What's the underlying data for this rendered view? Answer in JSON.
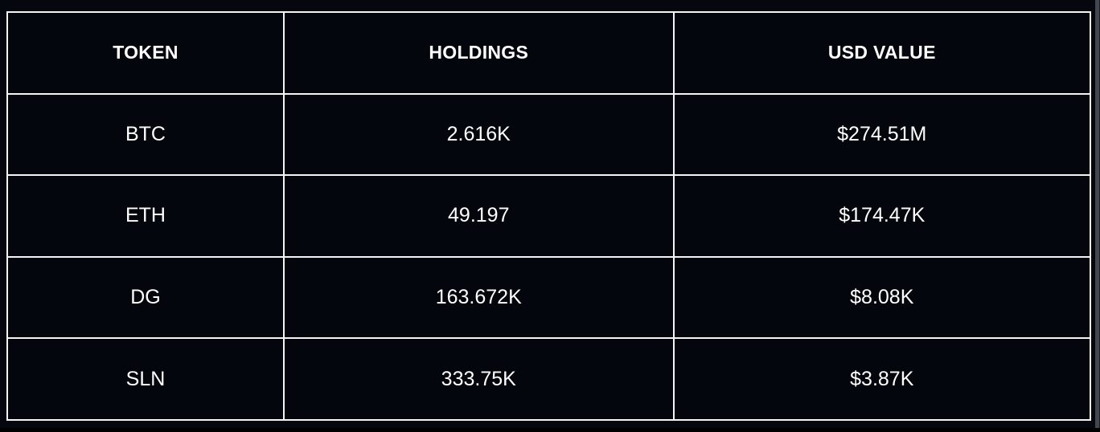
{
  "table": {
    "columns": {
      "token": "TOKEN",
      "holdings": "HOLDINGS",
      "usd_value": "USD VALUE"
    },
    "rows": [
      {
        "token": "BTC",
        "holdings": "2.616K",
        "usd_value": "$274.51M"
      },
      {
        "token": "ETH",
        "holdings": "49.197",
        "usd_value": "$174.47K"
      },
      {
        "token": "DG",
        "holdings": "163.672K",
        "usd_value": "$8.08K"
      },
      {
        "token": "SLN",
        "holdings": "333.75K",
        "usd_value": "$3.87K"
      }
    ]
  },
  "chart_data": {
    "type": "table",
    "columns": [
      "TOKEN",
      "HOLDINGS",
      "USD VALUE"
    ],
    "rows": [
      [
        "BTC",
        "2.616K",
        "$274.51M"
      ],
      [
        "ETH",
        "49.197",
        "$174.47K"
      ],
      [
        "DG",
        "163.672K",
        "$8.08K"
      ],
      [
        "SLN",
        "333.75K",
        "$3.87K"
      ]
    ]
  },
  "colors": {
    "background": "#04070d",
    "cell_background": "#03060c",
    "grid_line": "#f5f5f5",
    "text": "#ffffff",
    "scrollbar": "#43464c",
    "bottom_bar": "#000000"
  }
}
